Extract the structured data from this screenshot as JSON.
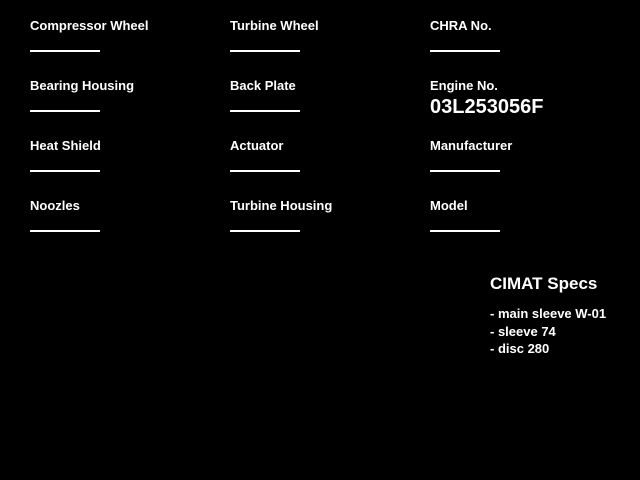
{
  "page": {
    "background": "#000000",
    "text_color": "#ffffff"
  },
  "form": {
    "columns": [
      {
        "name": "left",
        "fields": [
          {
            "label": "Compressor Wheel",
            "value": ""
          },
          {
            "label": "Bearing Housing",
            "value": ""
          },
          {
            "label": "Heat Shield",
            "value": ""
          },
          {
            "label": "Noozles",
            "value": ""
          }
        ]
      },
      {
        "name": "middle",
        "fields": [
          {
            "label": "Turbine Wheel",
            "value": ""
          },
          {
            "label": "Back Plate",
            "value": ""
          },
          {
            "label": "Actuator",
            "value": ""
          },
          {
            "label": "Turbine Housing",
            "value": ""
          }
        ]
      },
      {
        "name": "right",
        "fields": [
          {
            "label": "CHRA No.",
            "value": ""
          },
          {
            "label": "Engine No.",
            "value": "03L253056F"
          },
          {
            "label": "Manufacturer",
            "value": ""
          },
          {
            "label": "Model",
            "value": ""
          }
        ]
      }
    ]
  },
  "specs": {
    "title": "CIMAT Specs",
    "items": [
      "- main sleeve W-01",
      "- sleeve 74",
      "- disc 280"
    ]
  }
}
